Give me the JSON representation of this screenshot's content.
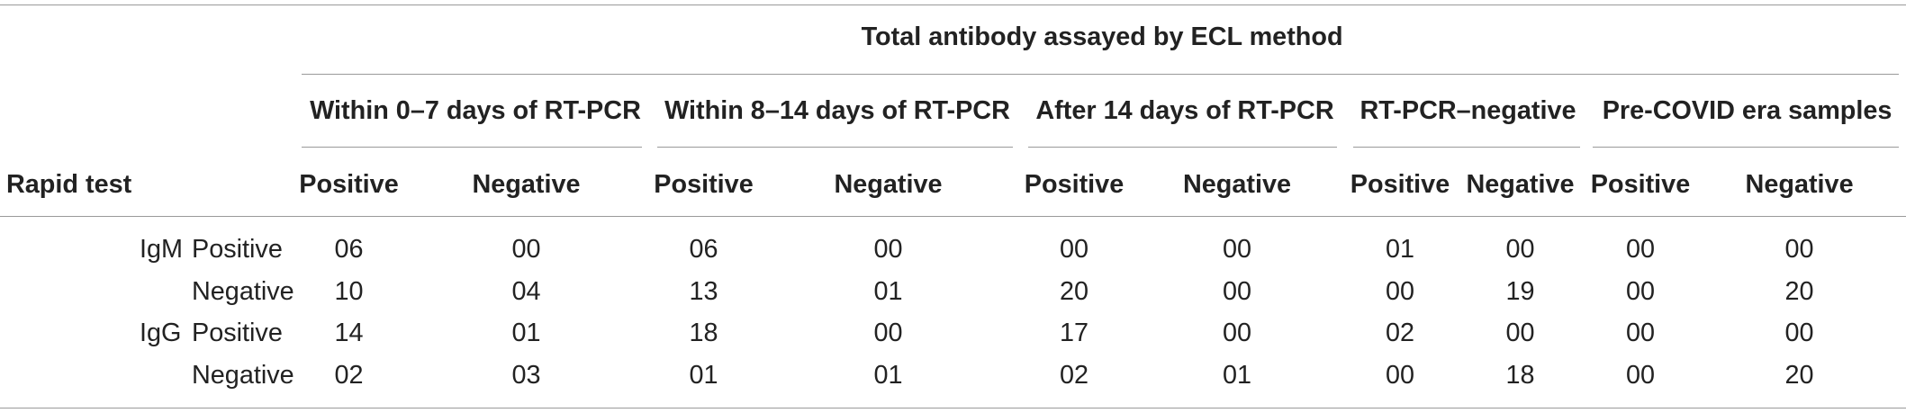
{
  "colors": {
    "text": "#222222",
    "rule": "#9a9a9a"
  },
  "table": {
    "title": "Total antibody assayed by ECL method",
    "stub_header": "Rapid test",
    "column_groups": [
      {
        "label": "Within 0–7 days of RT-PCR",
        "columns": [
          "Positive",
          "Negative"
        ]
      },
      {
        "label": "Within 8–14 days of RT-PCR",
        "columns": [
          "Positive",
          "Negative"
        ]
      },
      {
        "label": "After 14 days of RT-PCR",
        "columns": [
          "Positive",
          "Negative"
        ]
      },
      {
        "label": "RT-PCR–negative",
        "columns": [
          "Positive",
          "Negative"
        ]
      },
      {
        "label": "Pre-COVID era samples",
        "columns": [
          "Positive",
          "Negative"
        ]
      }
    ],
    "antibodies": [
      {
        "name": "IgM",
        "results": [
          {
            "label": "Positive",
            "values": [
              "06",
              "00",
              "06",
              "00",
              "00",
              "00",
              "01",
              "00",
              "00",
              "00"
            ]
          },
          {
            "label": "Negative",
            "values": [
              "10",
              "04",
              "13",
              "01",
              "20",
              "00",
              "00",
              "19",
              "00",
              "20"
            ]
          }
        ]
      },
      {
        "name": "IgG",
        "results": [
          {
            "label": "Positive",
            "values": [
              "14",
              "01",
              "18",
              "00",
              "17",
              "00",
              "02",
              "00",
              "00",
              "00"
            ]
          },
          {
            "label": "Negative",
            "values": [
              "02",
              "03",
              "01",
              "01",
              "02",
              "01",
              "00",
              "18",
              "00",
              "20"
            ]
          }
        ]
      }
    ]
  }
}
